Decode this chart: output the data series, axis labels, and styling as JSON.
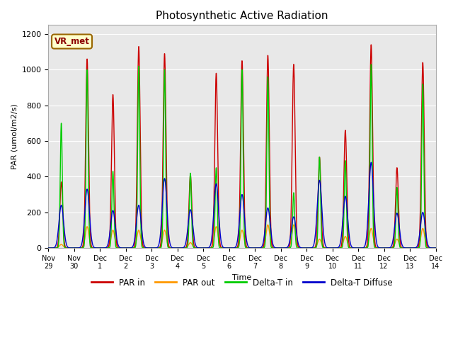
{
  "title": "Photosynthetic Active Radiation",
  "xlabel": "Time",
  "ylabel": "PAR (umol/m2/s)",
  "ylim": [
    0,
    1250
  ],
  "yticks": [
    0,
    200,
    400,
    600,
    800,
    1000,
    1200
  ],
  "background_color": "#e8e8e8",
  "legend_labels": [
    "PAR in",
    "PAR out",
    "Delta-T in",
    "Delta-T Diffuse"
  ],
  "legend_colors": [
    "#cc0000",
    "#ff9900",
    "#00cc00",
    "#0000cc"
  ],
  "annotation_text": "VR_met",
  "annotation_bg": "#ffffcc",
  "annotation_border": "#996600",
  "colors": {
    "par_in": "#cc0000",
    "par_out": "#ff9900",
    "delta_t_in": "#00cc00",
    "delta_t_diffuse": "#0000cc"
  },
  "lw": 1.0,
  "x_tick_labels": [
    "Nov 29",
    "Nov 30",
    "Dec 1",
    "Dec 2",
    "Dec 3",
    "Dec 4",
    "Dec 5",
    "Dec 6",
    "Dec 7",
    "Dec 8",
    "Dec 9",
    "Dec 10",
    "Dec 11",
    "Dec 12",
    "Dec 13",
    "Dec 14"
  ],
  "x_tick_positions": [
    0,
    1,
    2,
    3,
    4,
    5,
    6,
    7,
    8,
    9,
    10,
    11,
    12,
    13,
    14,
    15
  ],
  "day_params": [
    {
      "par_in": 370,
      "par_out": 20,
      "green": 320,
      "blue": 240,
      "green_spike": 700,
      "blue_base": 240
    },
    {
      "par_in": 1060,
      "par_out": 120,
      "green": 1000,
      "blue": 330,
      "green_spike": 1000,
      "blue_base": 330
    },
    {
      "par_in": 860,
      "par_out": 100,
      "green": 430,
      "blue": 210,
      "green_spike": 430,
      "blue_base": 210
    },
    {
      "par_in": 1130,
      "par_out": 100,
      "green": 1020,
      "blue": 240,
      "green_spike": 1020,
      "blue_base": 240
    },
    {
      "par_in": 1090,
      "par_out": 100,
      "green": 1000,
      "blue": 390,
      "green_spike": 1000,
      "blue_base": 390
    },
    {
      "par_in": 410,
      "par_out": 30,
      "green": 420,
      "blue": 215,
      "green_spike": 420,
      "blue_base": 215
    },
    {
      "par_in": 980,
      "par_out": 120,
      "green": 450,
      "blue": 360,
      "green_spike": 450,
      "blue_base": 360
    },
    {
      "par_in": 1050,
      "par_out": 100,
      "green": 1000,
      "blue": 300,
      "green_spike": 1000,
      "blue_base": 300
    },
    {
      "par_in": 1080,
      "par_out": 130,
      "green": 960,
      "blue": 225,
      "green_spike": 960,
      "blue_base": 225
    },
    {
      "par_in": 1030,
      "par_out": 130,
      "green": 310,
      "blue": 175,
      "green_spike": 310,
      "blue_base": 175
    },
    {
      "par_in": 510,
      "par_out": 50,
      "green": 510,
      "blue": 380,
      "green_spike": 510,
      "blue_base": 380
    },
    {
      "par_in": 660,
      "par_out": 65,
      "green": 490,
      "blue": 290,
      "green_spike": 490,
      "blue_base": 290
    },
    {
      "par_in": 1140,
      "par_out": 110,
      "green": 1030,
      "blue": 480,
      "green_spike": 1030,
      "blue_base": 480
    },
    {
      "par_in": 450,
      "par_out": 50,
      "green": 340,
      "blue": 195,
      "green_spike": 340,
      "blue_base": 195
    },
    {
      "par_in": 1040,
      "par_out": 110,
      "green": 920,
      "blue": 200,
      "green_spike": 920,
      "blue_base": 200
    }
  ]
}
